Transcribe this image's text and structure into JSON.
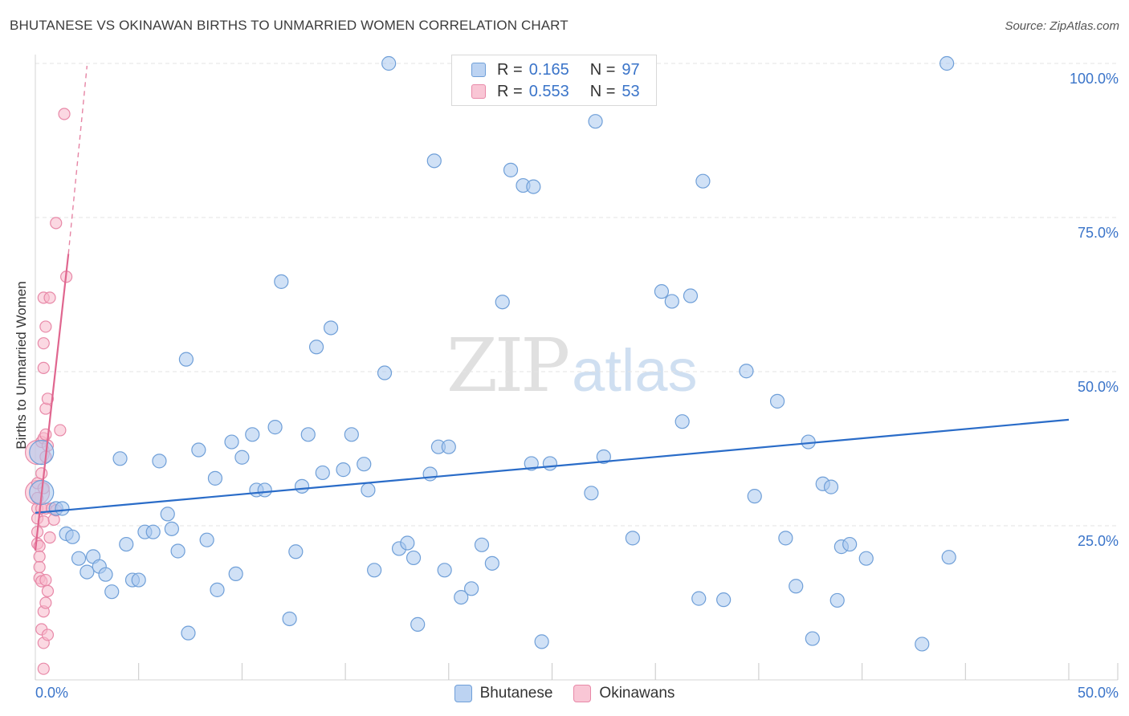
{
  "header": {
    "title": "BHUTANESE VS OKINAWAN BIRTHS TO UNMARRIED WOMEN CORRELATION CHART",
    "source": "Source: ZipAtlas.com"
  },
  "watermark": {
    "zip": "ZIP",
    "atlas": "atlas"
  },
  "legend": {
    "r_label": "R =",
    "n_label": "N =",
    "rows": [
      {
        "name": "Bhutanese",
        "r": "0.165",
        "n": "97"
      },
      {
        "name": "Okinawans",
        "r": "0.553",
        "n": "53"
      }
    ]
  },
  "colors": {
    "blue_fill": "#a9c8ee",
    "blue_stroke": "#6f9fd8",
    "blue_line": "#2a6cc8",
    "pink_fill": "#f7b8cb",
    "pink_stroke": "#e889a8",
    "pink_line": "#e0668f",
    "grid": "#e3e3e3",
    "tick_text": "#3a74c9"
  },
  "chart_data": {
    "type": "scatter",
    "title": "BHUTANESE VS OKINAWAN BIRTHS TO UNMARRIED WOMEN CORRELATION CHART",
    "xlabel": "",
    "ylabel": "Births to Unmarried Women",
    "xlim": [
      0,
      50
    ],
    "ylim": [
      0,
      100
    ],
    "x_tick_labels": [
      "0.0%",
      "50.0%"
    ],
    "y_ticks": [
      25,
      50,
      75,
      100
    ],
    "y_tick_labels": [
      "25.0%",
      "50.0%",
      "75.0%",
      "100.0%"
    ],
    "grid": true,
    "series": [
      {
        "name": "Bhutanese",
        "r": 0.165,
        "n": 97,
        "trend": {
          "x": [
            0,
            50
          ],
          "y": [
            27.1,
            42.2
          ]
        },
        "points": [
          {
            "x": 0.3,
            "y": 36.9,
            "big": true
          },
          {
            "x": 0.3,
            "y": 30.4,
            "big": true
          },
          {
            "x": 1.0,
            "y": 27.8
          },
          {
            "x": 1.3,
            "y": 27.8
          },
          {
            "x": 1.5,
            "y": 23.7
          },
          {
            "x": 1.8,
            "y": 23.2
          },
          {
            "x": 2.1,
            "y": 19.7
          },
          {
            "x": 2.5,
            "y": 17.5
          },
          {
            "x": 2.8,
            "y": 20.0
          },
          {
            "x": 3.1,
            "y": 18.4
          },
          {
            "x": 3.4,
            "y": 17.1
          },
          {
            "x": 3.7,
            "y": 14.3
          },
          {
            "x": 4.1,
            "y": 35.9
          },
          {
            "x": 4.4,
            "y": 22.0
          },
          {
            "x": 4.7,
            "y": 16.2
          },
          {
            "x": 5.0,
            "y": 16.2
          },
          {
            "x": 5.3,
            "y": 24.0
          },
          {
            "x": 5.7,
            "y": 24.0
          },
          {
            "x": 6.0,
            "y": 35.5
          },
          {
            "x": 6.4,
            "y": 26.9
          },
          {
            "x": 6.6,
            "y": 24.5
          },
          {
            "x": 6.9,
            "y": 20.9
          },
          {
            "x": 7.3,
            "y": 52.0
          },
          {
            "x": 7.4,
            "y": 7.6
          },
          {
            "x": 7.9,
            "y": 37.3
          },
          {
            "x": 8.3,
            "y": 22.7
          },
          {
            "x": 8.7,
            "y": 32.7
          },
          {
            "x": 8.8,
            "y": 14.6
          },
          {
            "x": 9.5,
            "y": 38.6
          },
          {
            "x": 9.7,
            "y": 17.2
          },
          {
            "x": 10.0,
            "y": 36.1
          },
          {
            "x": 10.5,
            "y": 39.8
          },
          {
            "x": 10.7,
            "y": 30.8
          },
          {
            "x": 11.1,
            "y": 30.8
          },
          {
            "x": 11.6,
            "y": 41.0
          },
          {
            "x": 11.9,
            "y": 64.6
          },
          {
            "x": 12.3,
            "y": 9.9
          },
          {
            "x": 12.6,
            "y": 20.8
          },
          {
            "x": 12.9,
            "y": 31.4
          },
          {
            "x": 13.2,
            "y": 39.8
          },
          {
            "x": 13.6,
            "y": 54.0
          },
          {
            "x": 13.9,
            "y": 33.6
          },
          {
            "x": 14.3,
            "y": 57.1
          },
          {
            "x": 14.9,
            "y": 34.1
          },
          {
            "x": 15.3,
            "y": 39.8
          },
          {
            "x": 15.9,
            "y": 35.0
          },
          {
            "x": 16.1,
            "y": 30.8
          },
          {
            "x": 16.4,
            "y": 17.8
          },
          {
            "x": 16.9,
            "y": 49.8
          },
          {
            "x": 17.1,
            "y": 100.0
          },
          {
            "x": 17.6,
            "y": 21.3
          },
          {
            "x": 18.0,
            "y": 22.2
          },
          {
            "x": 18.3,
            "y": 19.8
          },
          {
            "x": 18.5,
            "y": 9.0
          },
          {
            "x": 19.1,
            "y": 33.4
          },
          {
            "x": 19.3,
            "y": 84.2
          },
          {
            "x": 19.5,
            "y": 37.8
          },
          {
            "x": 19.8,
            "y": 17.8
          },
          {
            "x": 20.0,
            "y": 37.8
          },
          {
            "x": 20.6,
            "y": 13.4
          },
          {
            "x": 21.1,
            "y": 14.8
          },
          {
            "x": 21.6,
            "y": 21.9
          },
          {
            "x": 22.1,
            "y": 18.9
          },
          {
            "x": 22.6,
            "y": 61.3
          },
          {
            "x": 23.0,
            "y": 82.7
          },
          {
            "x": 23.6,
            "y": 80.2
          },
          {
            "x": 24.0,
            "y": 35.1
          },
          {
            "x": 24.1,
            "y": 80.0
          },
          {
            "x": 24.5,
            "y": 6.2
          },
          {
            "x": 24.9,
            "y": 35.1
          },
          {
            "x": 27.1,
            "y": 90.6
          },
          {
            "x": 26.9,
            "y": 30.3
          },
          {
            "x": 27.5,
            "y": 36.2
          },
          {
            "x": 28.9,
            "y": 23.0
          },
          {
            "x": 30.3,
            "y": 63.0
          },
          {
            "x": 30.8,
            "y": 61.4
          },
          {
            "x": 31.3,
            "y": 41.9
          },
          {
            "x": 31.7,
            "y": 62.3
          },
          {
            "x": 32.1,
            "y": 13.2
          },
          {
            "x": 32.3,
            "y": 80.9
          },
          {
            "x": 33.3,
            "y": 13.0
          },
          {
            "x": 34.4,
            "y": 50.1
          },
          {
            "x": 34.8,
            "y": 29.8
          },
          {
            "x": 35.9,
            "y": 45.2
          },
          {
            "x": 36.3,
            "y": 23.0
          },
          {
            "x": 36.8,
            "y": 15.2
          },
          {
            "x": 37.4,
            "y": 38.6
          },
          {
            "x": 37.6,
            "y": 6.7
          },
          {
            "x": 38.1,
            "y": 31.8
          },
          {
            "x": 38.5,
            "y": 31.3
          },
          {
            "x": 38.8,
            "y": 12.9
          },
          {
            "x": 39.0,
            "y": 21.6
          },
          {
            "x": 39.4,
            "y": 22.0
          },
          {
            "x": 40.2,
            "y": 19.7
          },
          {
            "x": 42.9,
            "y": 5.8
          },
          {
            "x": 44.1,
            "y": 100.0
          },
          {
            "x": 44.2,
            "y": 19.9
          }
        ]
      },
      {
        "name": "Okinawans",
        "r": 0.553,
        "n": 53,
        "trend": {
          "x": [
            0,
            1.6
          ],
          "y": [
            21.0,
            69.1
          ]
        },
        "trend_dashed": {
          "x": [
            1.6,
            2.5
          ],
          "y": [
            69.1,
            99.6
          ]
        },
        "points": [
          {
            "x": 0.1,
            "y": 36.9,
            "big": true
          },
          {
            "x": 0.1,
            "y": 30.4,
            "big": true
          },
          {
            "x": 0.1,
            "y": 27.8
          },
          {
            "x": 0.1,
            "y": 29.5
          },
          {
            "x": 0.1,
            "y": 31.9
          },
          {
            "x": 0.1,
            "y": 26.2
          },
          {
            "x": 0.1,
            "y": 24.0
          },
          {
            "x": 0.1,
            "y": 22.1
          },
          {
            "x": 0.2,
            "y": 21.7
          },
          {
            "x": 0.2,
            "y": 20.0
          },
          {
            "x": 0.2,
            "y": 18.3
          },
          {
            "x": 0.2,
            "y": 16.5
          },
          {
            "x": 0.3,
            "y": 38.6
          },
          {
            "x": 0.3,
            "y": 33.5
          },
          {
            "x": 0.3,
            "y": 27.8
          },
          {
            "x": 0.3,
            "y": 16.0
          },
          {
            "x": 0.3,
            "y": 8.2
          },
          {
            "x": 0.4,
            "y": 62.0
          },
          {
            "x": 0.4,
            "y": 54.6
          },
          {
            "x": 0.4,
            "y": 50.6
          },
          {
            "x": 0.4,
            "y": 39.2
          },
          {
            "x": 0.4,
            "y": 31.1
          },
          {
            "x": 0.4,
            "y": 25.7
          },
          {
            "x": 0.4,
            "y": 11.1
          },
          {
            "x": 0.4,
            "y": 6.0
          },
          {
            "x": 0.4,
            "y": 1.8
          },
          {
            "x": 0.5,
            "y": 57.3
          },
          {
            "x": 0.5,
            "y": 44.0
          },
          {
            "x": 0.5,
            "y": 39.8
          },
          {
            "x": 0.5,
            "y": 36.2
          },
          {
            "x": 0.5,
            "y": 27.8
          },
          {
            "x": 0.5,
            "y": 16.2
          },
          {
            "x": 0.5,
            "y": 12.5
          },
          {
            "x": 0.6,
            "y": 14.4
          },
          {
            "x": 0.6,
            "y": 7.3
          },
          {
            "x": 0.6,
            "y": 45.6
          },
          {
            "x": 0.6,
            "y": 38.0
          },
          {
            "x": 0.7,
            "y": 62.0
          },
          {
            "x": 0.7,
            "y": 23.1
          },
          {
            "x": 0.8,
            "y": 27.8
          },
          {
            "x": 0.9,
            "y": 26.0
          },
          {
            "x": 1.0,
            "y": 74.1
          },
          {
            "x": 1.2,
            "y": 40.5
          },
          {
            "x": 1.4,
            "y": 91.8
          },
          {
            "x": 1.5,
            "y": 65.4
          },
          {
            "x": 1.0,
            "y": 27.5
          }
        ]
      }
    ]
  }
}
